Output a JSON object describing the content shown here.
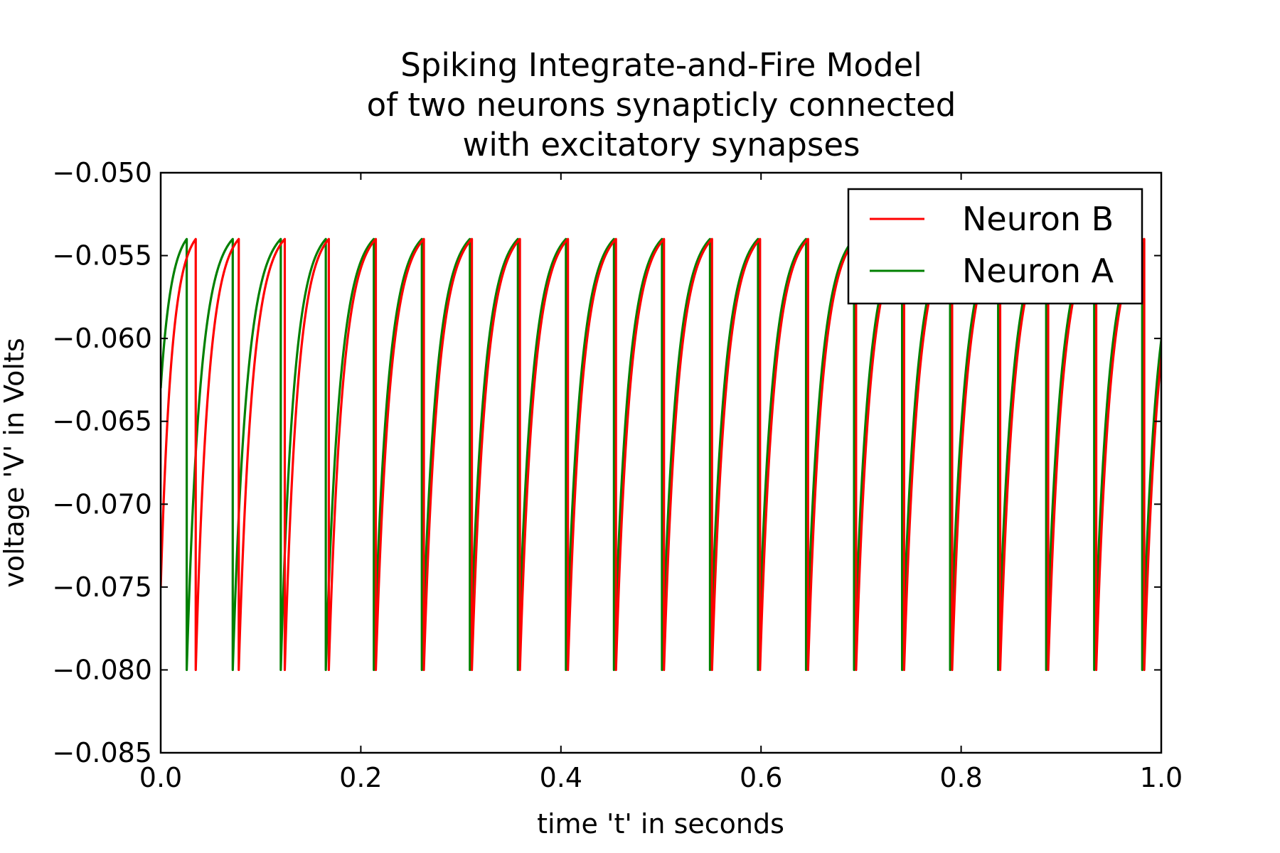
{
  "chart_data": {
    "type": "line",
    "title_lines": [
      "Spiking Integrate-and-Fire Model",
      "of two neurons synapticly connected",
      "with excitatory synapses"
    ],
    "xlabel": "time 't' in seconds",
    "ylabel": "voltage 'V' in Volts",
    "xlim": [
      0.0,
      1.0
    ],
    "ylim": [
      -0.085,
      -0.05
    ],
    "xticks": [
      0.0,
      0.2,
      0.4,
      0.6,
      0.8,
      1.0
    ],
    "xtick_labels": [
      "0.0",
      "0.2",
      "0.4",
      "0.6",
      "0.8",
      "1.0"
    ],
    "yticks": [
      -0.05,
      -0.055,
      -0.06,
      -0.065,
      -0.07,
      -0.075,
      -0.08,
      -0.085
    ],
    "ytick_labels": [
      "−0.050",
      "−0.055",
      "−0.060",
      "−0.065",
      "−0.070",
      "−0.075",
      "−0.080",
      "−0.085"
    ],
    "grid": false,
    "legend_position": "top-right",
    "reset_voltage": -0.08,
    "threshold_voltage": -0.054,
    "series": [
      {
        "name": "Neuron B",
        "color": "#ff0000",
        "start_voltage": -0.075,
        "spike_times": [
          0.035,
          0.078,
          0.124,
          0.168,
          0.215,
          0.263,
          0.311,
          0.359,
          0.407,
          0.455,
          0.503,
          0.551,
          0.599,
          0.647,
          0.695,
          0.743,
          0.791,
          0.839,
          0.887,
          0.935,
          0.983
        ]
      },
      {
        "name": "Neuron A",
        "color": "#008000",
        "start_voltage": -0.063,
        "spike_times": [
          0.026,
          0.072,
          0.12,
          0.165,
          0.213,
          0.261,
          0.309,
          0.357,
          0.405,
          0.453,
          0.501,
          0.549,
          0.597,
          0.645,
          0.693,
          0.741,
          0.789,
          0.837,
          0.885,
          0.933,
          0.981
        ]
      }
    ]
  }
}
